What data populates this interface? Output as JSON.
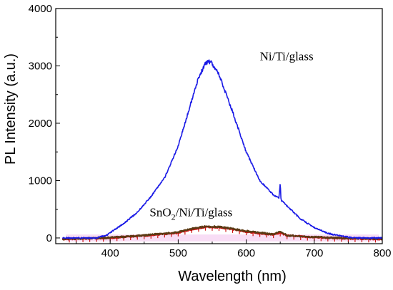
{
  "chart_data": {
    "type": "line",
    "xlabel": "Wavelength (nm)",
    "ylabel": "PL Intensity (a.u.)",
    "xlim": [
      320,
      800
    ],
    "ylim": [
      -100,
      4000
    ],
    "x_ticks": [
      400,
      500,
      600,
      700,
      800
    ],
    "x_tick_labels": [
      "400",
      "500",
      "600",
      "700",
      "800"
    ],
    "y_ticks": [
      0,
      1000,
      2000,
      3000,
      4000
    ],
    "y_tick_labels": [
      "0",
      "1000",
      "2000",
      "3000",
      "4000"
    ],
    "grid": false,
    "series": [
      {
        "name": "Ni/Ti/glass",
        "color": "#1a1ae6",
        "x": [
          330,
          380,
          395,
          410,
          420,
          440,
          460,
          480,
          500,
          520,
          530,
          540,
          545,
          550,
          560,
          580,
          600,
          620,
          640,
          645,
          648,
          650,
          651,
          652,
          655,
          660,
          680,
          700,
          720,
          740,
          760,
          780,
          800
        ],
        "y": [
          0,
          0,
          50,
          170,
          250,
          450,
          720,
          1050,
          1600,
          2400,
          2800,
          3040,
          3080,
          3040,
          2850,
          2200,
          1500,
          1000,
          750,
          720,
          700,
          950,
          700,
          650,
          620,
          560,
          330,
          180,
          80,
          30,
          0,
          0,
          0
        ]
      },
      {
        "name": "SnO2/Ni/Ti/glass",
        "color": "#cc1111",
        "x": [
          330,
          400,
          450,
          500,
          520,
          540,
          560,
          580,
          600,
          620,
          640,
          650,
          660,
          700,
          750,
          800
        ],
        "y": [
          -20,
          0,
          40,
          90,
          150,
          190,
          185,
          150,
          110,
          80,
          60,
          90,
          40,
          10,
          -10,
          -20
        ]
      },
      {
        "name": "",
        "color": "#5a3a14",
        "x": [
          330,
          400,
          450,
          500,
          520,
          540,
          560,
          580,
          600,
          620,
          640,
          650,
          660,
          700,
          750,
          800
        ],
        "y": [
          -20,
          5,
          45,
          100,
          160,
          200,
          195,
          160,
          120,
          90,
          65,
          110,
          45,
          15,
          -5,
          -15
        ]
      }
    ],
    "annotations": [
      {
        "text": "Ni/Ti/glass",
        "x": 620,
        "y": 3100
      },
      {
        "text_main": "SnO",
        "text_sub": "2",
        "text_rest": "/Ni/Ti/glass",
        "x": 458,
        "y": 380
      }
    ]
  }
}
